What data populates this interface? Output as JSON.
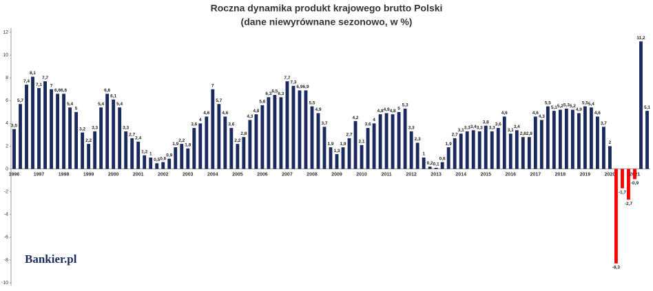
{
  "chart_data": {
    "type": "bar",
    "title": "Roczna dynamika produkt krajowego brutto Polski",
    "subtitle": "(dane niewyrównane sezonowo, w %)",
    "watermark": "Bankier.pl",
    "categories": [
      "1996",
      null,
      null,
      null,
      "1997",
      null,
      null,
      null,
      "1998",
      null,
      null,
      null,
      "1999",
      null,
      null,
      null,
      "2000",
      null,
      null,
      null,
      "2001",
      null,
      null,
      null,
      "2002",
      null,
      null,
      null,
      "2003",
      null,
      null,
      null,
      "2004",
      null,
      null,
      null,
      "2005",
      null,
      null,
      null,
      "2006",
      null,
      null,
      null,
      "2007",
      null,
      null,
      null,
      "2008",
      null,
      null,
      null,
      "2009",
      null,
      null,
      null,
      "2010",
      null,
      null,
      null,
      "2011",
      null,
      null,
      null,
      "2012",
      null,
      null,
      null,
      "2013",
      null,
      null,
      null,
      "2014",
      null,
      null,
      null,
      "2015",
      null,
      null,
      null,
      "2016",
      null,
      null,
      null,
      "2017",
      null,
      null,
      null,
      "2018",
      null,
      null,
      null,
      "2019",
      null,
      null,
      null,
      "2020",
      null,
      null,
      null,
      "2021",
      null,
      null
    ],
    "values": [
      3.5,
      5.7,
      7.4,
      8.1,
      7.1,
      7.7,
      7,
      6.6,
      6.6,
      5.4,
      5,
      3.2,
      2.2,
      3.3,
      5.4,
      6.6,
      6.1,
      5.4,
      3.3,
      2.7,
      2.4,
      1.2,
      1,
      0.5,
      0.6,
      0.9,
      1.9,
      2.2,
      1.8,
      3.6,
      4,
      4.6,
      7,
      5.7,
      4.6,
      3.6,
      2.2,
      2.8,
      4.3,
      4.8,
      5.6,
      6.3,
      6.5,
      6.3,
      7.7,
      7.3,
      6.9,
      6.9,
      5.5,
      4.9,
      3.7,
      1.9,
      1.3,
      1.9,
      2.7,
      4.2,
      2.1,
      3.6,
      4,
      4.8,
      4.9,
      4.8,
      5,
      5.3,
      3.3,
      2.3,
      1,
      0.2,
      0.1,
      0.6,
      1.9,
      2.7,
      3.1,
      3.3,
      3.4,
      3.3,
      3.8,
      3.3,
      3.6,
      4.6,
      3.1,
      3.4,
      2.8,
      2.8,
      4.6,
      4.3,
      5.5,
      5.1,
      5.2,
      5.3,
      5.2,
      4.9,
      5.5,
      5.4,
      4.6,
      3.7,
      2,
      -8.3,
      -1.7,
      -2.7,
      -0.9,
      11.2,
      5.1
    ],
    "value_labels": [
      "3,5",
      "5,7",
      "7,4",
      "8,1",
      "7,1",
      "7,7",
      "7",
      "6,6",
      "6,6",
      "5,4",
      "5",
      "3,2",
      "2,2",
      "3,3",
      "5,4",
      "6,6",
      "6,1",
      "5,4",
      "3,3",
      "2,7",
      "2,4",
      "1,2",
      "1",
      "0,5",
      "0,6",
      "0,9",
      "1,9",
      "2,2",
      "1,8",
      "3,6",
      "4",
      "4,6",
      "7",
      "5,7",
      "4,6",
      "3,6",
      "2,2",
      "2,8",
      "4,3",
      "4,8",
      "5,6",
      "6,3",
      "6,5",
      "6,3",
      "7,7",
      "7,3",
      "6,9",
      "6,9",
      "5,5",
      "4,9",
      "3,7",
      "1,9",
      "1,3",
      "1,9",
      "2,7",
      "4,2",
      "2,1",
      "3,6",
      "4",
      "4,8",
      "4,9",
      "4,8",
      "5",
      "5,3",
      "3,3",
      "2,3",
      "1",
      "0,2",
      "0,1",
      "0,6",
      "1,9",
      "2,7",
      "3,1",
      "3,3",
      "3,4",
      "3,3",
      "3,8",
      "3,3",
      "3,6",
      "4,6",
      "3,1",
      "3,4",
      "2,8",
      "2,8",
      "4,6",
      "4,3",
      "5,5",
      "5,1",
      "5,2",
      "5,3",
      "5,2",
      "4,9",
      "5,5",
      "5,4",
      "4,6",
      "3,7",
      "2",
      "-8,3",
      "-1,7",
      "-2,7",
      "-0,9",
      "11,2",
      "5,1"
    ],
    "color": "#1b2a5e",
    "negative_color": "#ff0000",
    "ylim": [
      -10,
      12
    ],
    "yticks": [
      -10,
      -8,
      -6,
      -4,
      -2,
      0,
      2,
      4,
      6,
      8,
      10,
      12
    ],
    "grid": false
  }
}
